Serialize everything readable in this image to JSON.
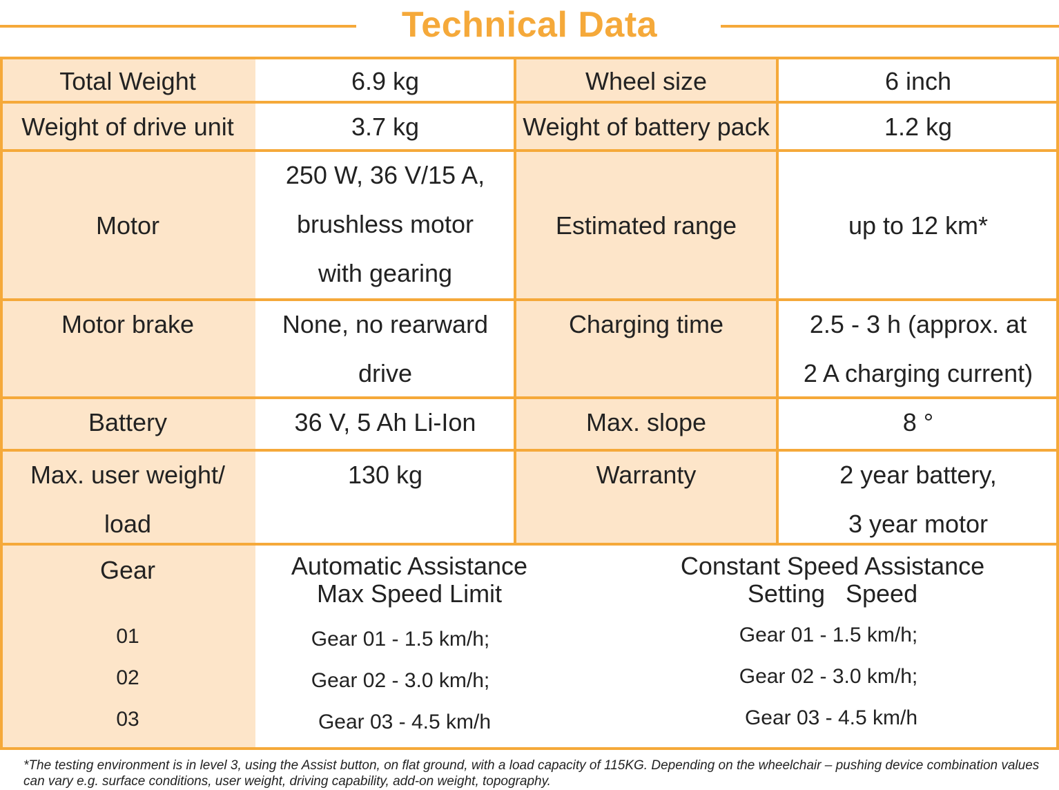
{
  "title": "Technical Data",
  "rows": [
    {
      "l1": "Total Weight",
      "v1": [
        "6.9 kg"
      ],
      "l2": "Wheel size",
      "v2": [
        "6 inch"
      ]
    },
    {
      "l1": "Weight of drive unit",
      "v1": [
        "3.7 kg"
      ],
      "l2": "Weight of battery pack",
      "v2": [
        "1.2 kg"
      ]
    },
    {
      "l1": "Motor",
      "v1": [
        "250 W, 36 V/15 A,",
        "brushless motor",
        "with gearing"
      ],
      "l2": "Estimated range",
      "v2": [
        "up to 12 km*"
      ]
    },
    {
      "l1": "Motor brake",
      "v1": [
        "None, no rearward",
        "drive"
      ],
      "l2": "Charging time",
      "v2": [
        "2.5 - 3 h (approx. at",
        "2 A charging current)"
      ]
    },
    {
      "l1": "Battery",
      "v1": [
        "36 V, 5 Ah Li-Ion"
      ],
      "l2": "Max. slope",
      "v2": [
        "8 °"
      ]
    },
    {
      "l1": [
        "Max. user weight/",
        "load"
      ],
      "v1": [
        "130 kg"
      ],
      "l2": "Warranty",
      "v2": [
        "2 year battery,",
        "3 year motor"
      ]
    }
  ],
  "gear": {
    "label": "Gear",
    "levels": [
      "01",
      "02",
      "03"
    ],
    "auto_head": [
      "Automatic Assistance",
      "Max Speed Limit"
    ],
    "auto_values": [
      "Gear 01 - 1.5 km/h;",
      "Gear 02 - 3.0 km/h;",
      "Gear 03 - 4.5 km/h"
    ],
    "const_head": [
      "Constant Speed Assistance",
      "Setting   Speed"
    ],
    "const_values": [
      "Gear 01 - 1.5 km/h;",
      "Gear 02 - 3.0 km/h;",
      "Gear 03 - 4.5 km/h"
    ]
  },
  "footnote": "*The testing environment is in level 3, using the Assist button, on flat ground, with a load capacity of 115KG. Depending on the wheelchair – pushing device combination values can vary e.g. surface conditions, user weight, driving capability, add-on weight, topography.",
  "colors": {
    "accent": "#f5a93a",
    "label_bg": "#fde5c9"
  }
}
